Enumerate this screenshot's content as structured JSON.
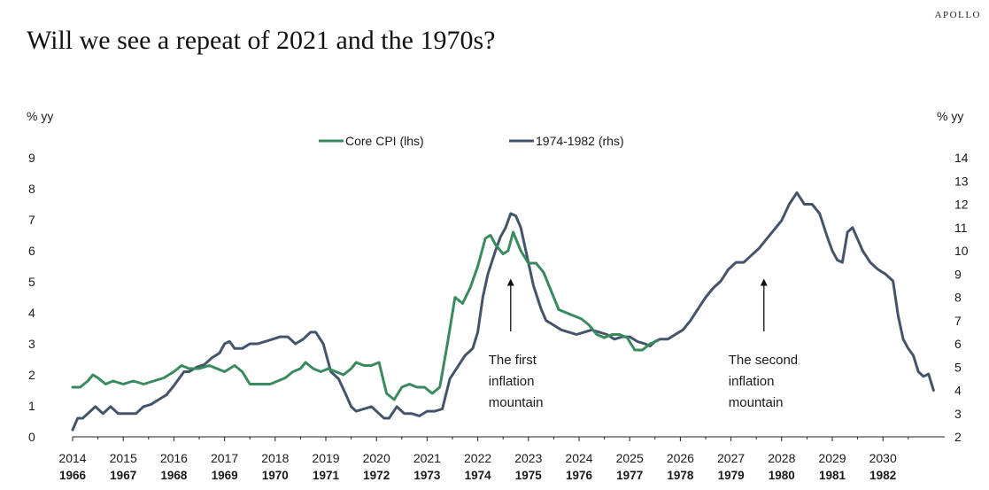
{
  "brand": "APOLLO",
  "title": "Will we see a repeat of 2021 and the 1970s?",
  "chart_data": {
    "type": "line",
    "title": "Will we see a repeat of 2021 and the 1970s?",
    "ylabel_left": "% yy",
    "ylabel_right": "% yy",
    "ylim_left": [
      0,
      9
    ],
    "ylim_right": [
      2,
      14
    ],
    "yticks_left": [
      "0",
      "1",
      "2",
      "3",
      "4",
      "5",
      "6",
      "7",
      "8",
      "9"
    ],
    "yticks_right": [
      "2",
      "3",
      "4",
      "5",
      "6",
      "7",
      "8",
      "9",
      "10",
      "11",
      "12",
      "13",
      "14"
    ],
    "xlim": [
      2014,
      2031
    ],
    "xticks_top": [
      "2014",
      "2015",
      "2016",
      "2017",
      "2018",
      "2019",
      "2020",
      "2021",
      "2022",
      "2023",
      "2024",
      "2025",
      "2026",
      "2027",
      "2028",
      "2029",
      "2030"
    ],
    "xticks_bottom": [
      "1966",
      "1967",
      "1968",
      "1969",
      "1970",
      "1971",
      "1972",
      "1973",
      "1974",
      "1975",
      "1976",
      "1977",
      "1978",
      "1979",
      "1980",
      "1981",
      "1982"
    ],
    "legend": [
      "Core CPI (lhs)",
      "1974-1982 (rhs)"
    ],
    "series": [
      {
        "name": "Core CPI (lhs)",
        "axis": "left",
        "color": "#3a8a5f",
        "points": [
          [
            2014.0,
            1.6
          ],
          [
            2014.15,
            1.6
          ],
          [
            2014.3,
            1.8
          ],
          [
            2014.4,
            2.0
          ],
          [
            2014.5,
            1.9
          ],
          [
            2014.65,
            1.7
          ],
          [
            2014.8,
            1.8
          ],
          [
            2015.0,
            1.7
          ],
          [
            2015.2,
            1.8
          ],
          [
            2015.4,
            1.7
          ],
          [
            2015.6,
            1.8
          ],
          [
            2015.8,
            1.9
          ],
          [
            2016.0,
            2.1
          ],
          [
            2016.15,
            2.3
          ],
          [
            2016.3,
            2.2
          ],
          [
            2016.5,
            2.2
          ],
          [
            2016.7,
            2.3
          ],
          [
            2016.85,
            2.2
          ],
          [
            2017.0,
            2.1
          ],
          [
            2017.2,
            2.3
          ],
          [
            2017.35,
            2.1
          ],
          [
            2017.5,
            1.7
          ],
          [
            2017.7,
            1.7
          ],
          [
            2017.9,
            1.7
          ],
          [
            2018.05,
            1.8
          ],
          [
            2018.2,
            1.9
          ],
          [
            2018.35,
            2.1
          ],
          [
            2018.5,
            2.2
          ],
          [
            2018.6,
            2.4
          ],
          [
            2018.75,
            2.2
          ],
          [
            2018.9,
            2.1
          ],
          [
            2019.05,
            2.2
          ],
          [
            2019.2,
            2.1
          ],
          [
            2019.35,
            2.0
          ],
          [
            2019.5,
            2.2
          ],
          [
            2019.6,
            2.4
          ],
          [
            2019.75,
            2.3
          ],
          [
            2019.9,
            2.3
          ],
          [
            2020.05,
            2.4
          ],
          [
            2020.2,
            1.4
          ],
          [
            2020.35,
            1.2
          ],
          [
            2020.5,
            1.6
          ],
          [
            2020.65,
            1.7
          ],
          [
            2020.8,
            1.6
          ],
          [
            2020.95,
            1.6
          ],
          [
            2021.1,
            1.4
          ],
          [
            2021.25,
            1.6
          ],
          [
            2021.4,
            3.0
          ],
          [
            2021.55,
            4.5
          ],
          [
            2021.7,
            4.3
          ],
          [
            2021.85,
            4.8
          ],
          [
            2022.0,
            5.5
          ],
          [
            2022.15,
            6.4
          ],
          [
            2022.25,
            6.5
          ],
          [
            2022.35,
            6.2
          ],
          [
            2022.5,
            5.9
          ],
          [
            2022.6,
            6.0
          ],
          [
            2022.7,
            6.6
          ],
          [
            2022.85,
            6.0
          ],
          [
            2023.0,
            5.6
          ],
          [
            2023.15,
            5.6
          ],
          [
            2023.3,
            5.3
          ],
          [
            2023.45,
            4.7
          ],
          [
            2023.6,
            4.1
          ],
          [
            2023.75,
            4.0
          ],
          [
            2023.9,
            3.9
          ],
          [
            2024.05,
            3.8
          ],
          [
            2024.2,
            3.6
          ],
          [
            2024.35,
            3.3
          ],
          [
            2024.5,
            3.2
          ],
          [
            2024.65,
            3.3
          ],
          [
            2024.8,
            3.3
          ],
          [
            2024.95,
            3.2
          ],
          [
            2025.1,
            2.8
          ],
          [
            2025.25,
            2.8
          ],
          [
            2025.4,
            3.0
          ],
          [
            2025.55,
            3.1
          ]
        ]
      },
      {
        "name": "1974-1982 (rhs)",
        "axis": "right",
        "color": "#44546a",
        "points": [
          [
            2014.0,
            2.3
          ],
          [
            2014.1,
            2.8
          ],
          [
            2014.2,
            2.8
          ],
          [
            2014.3,
            3.0
          ],
          [
            2014.45,
            3.3
          ],
          [
            2014.6,
            3.0
          ],
          [
            2014.75,
            3.3
          ],
          [
            2014.9,
            3.0
          ],
          [
            2015.1,
            3.0
          ],
          [
            2015.25,
            3.0
          ],
          [
            2015.4,
            3.3
          ],
          [
            2015.55,
            3.4
          ],
          [
            2015.7,
            3.6
          ],
          [
            2015.85,
            3.8
          ],
          [
            2016.0,
            4.2
          ],
          [
            2016.1,
            4.5
          ],
          [
            2016.2,
            4.8
          ],
          [
            2016.3,
            4.8
          ],
          [
            2016.45,
            5.0
          ],
          [
            2016.6,
            5.1
          ],
          [
            2016.75,
            5.4
          ],
          [
            2016.9,
            5.6
          ],
          [
            2017.0,
            6.0
          ],
          [
            2017.1,
            6.1
          ],
          [
            2017.2,
            5.8
          ],
          [
            2017.35,
            5.8
          ],
          [
            2017.5,
            6.0
          ],
          [
            2017.65,
            6.0
          ],
          [
            2017.8,
            6.1
          ],
          [
            2017.95,
            6.2
          ],
          [
            2018.1,
            6.3
          ],
          [
            2018.25,
            6.3
          ],
          [
            2018.4,
            6.0
          ],
          [
            2018.55,
            6.2
          ],
          [
            2018.7,
            6.5
          ],
          [
            2018.8,
            6.5
          ],
          [
            2018.95,
            6.0
          ],
          [
            2019.1,
            4.8
          ],
          [
            2019.25,
            4.5
          ],
          [
            2019.4,
            3.8
          ],
          [
            2019.5,
            3.3
          ],
          [
            2019.6,
            3.1
          ],
          [
            2019.75,
            3.2
          ],
          [
            2019.9,
            3.3
          ],
          [
            2020.05,
            3.0
          ],
          [
            2020.15,
            2.8
          ],
          [
            2020.25,
            2.8
          ],
          [
            2020.4,
            3.3
          ],
          [
            2020.55,
            3.0
          ],
          [
            2020.7,
            3.0
          ],
          [
            2020.85,
            2.9
          ],
          [
            2021.0,
            3.1
          ],
          [
            2021.15,
            3.1
          ],
          [
            2021.3,
            3.2
          ],
          [
            2021.45,
            4.5
          ],
          [
            2021.6,
            5.0
          ],
          [
            2021.75,
            5.5
          ],
          [
            2021.9,
            5.8
          ],
          [
            2022.0,
            6.5
          ],
          [
            2022.1,
            8.0
          ],
          [
            2022.2,
            9.0
          ],
          [
            2022.35,
            10.0
          ],
          [
            2022.45,
            10.6
          ],
          [
            2022.55,
            11.0
          ],
          [
            2022.65,
            11.6
          ],
          [
            2022.75,
            11.5
          ],
          [
            2022.85,
            11.0
          ],
          [
            2022.95,
            10.0
          ],
          [
            2023.1,
            8.5
          ],
          [
            2023.25,
            7.5
          ],
          [
            2023.35,
            7.0
          ],
          [
            2023.5,
            6.8
          ],
          [
            2023.65,
            6.6
          ],
          [
            2023.8,
            6.5
          ],
          [
            2023.95,
            6.4
          ],
          [
            2024.1,
            6.5
          ],
          [
            2024.25,
            6.6
          ],
          [
            2024.4,
            6.5
          ],
          [
            2024.55,
            6.4
          ],
          [
            2024.7,
            6.2
          ],
          [
            2024.85,
            6.3
          ],
          [
            2025.0,
            6.3
          ],
          [
            2025.15,
            6.1
          ],
          [
            2025.3,
            6.0
          ],
          [
            2025.4,
            5.9
          ],
          [
            2025.5,
            6.1
          ],
          [
            2025.6,
            6.2
          ],
          [
            2025.75,
            6.2
          ],
          [
            2025.9,
            6.4
          ],
          [
            2026.05,
            6.6
          ],
          [
            2026.2,
            7.0
          ],
          [
            2026.35,
            7.5
          ],
          [
            2026.5,
            8.0
          ],
          [
            2026.65,
            8.4
          ],
          [
            2026.8,
            8.7
          ],
          [
            2026.95,
            9.2
          ],
          [
            2027.1,
            9.5
          ],
          [
            2027.25,
            9.5
          ],
          [
            2027.4,
            9.8
          ],
          [
            2027.55,
            10.1
          ],
          [
            2027.7,
            10.5
          ],
          [
            2027.85,
            10.9
          ],
          [
            2028.0,
            11.3
          ],
          [
            2028.15,
            12.0
          ],
          [
            2028.3,
            12.5
          ],
          [
            2028.45,
            12.0
          ],
          [
            2028.6,
            12.0
          ],
          [
            2028.75,
            11.6
          ],
          [
            2028.9,
            10.6
          ],
          [
            2029.0,
            10.0
          ],
          [
            2029.1,
            9.6
          ],
          [
            2029.2,
            9.5
          ],
          [
            2029.3,
            10.8
          ],
          [
            2029.4,
            11.0
          ],
          [
            2029.5,
            10.5
          ],
          [
            2029.6,
            10.0
          ],
          [
            2029.75,
            9.5
          ],
          [
            2029.9,
            9.2
          ],
          [
            2030.05,
            9.0
          ],
          [
            2030.2,
            8.7
          ],
          [
            2030.3,
            7.2
          ],
          [
            2030.4,
            6.2
          ],
          [
            2030.5,
            5.8
          ],
          [
            2030.6,
            5.5
          ],
          [
            2030.7,
            4.8
          ],
          [
            2030.8,
            4.6
          ],
          [
            2030.9,
            4.7
          ],
          [
            2031.0,
            4.0
          ]
        ]
      }
    ],
    "annotations": [
      {
        "text_lines": [
          "The first",
          "inflation",
          "mountain"
        ],
        "arrow_x": 2022.65,
        "arrow_top_left": 5.1,
        "arrow_bottom_left": 3.4
      },
      {
        "text_lines": [
          "The second",
          "inflation",
          "mountain"
        ],
        "arrow_x": 2027.65,
        "arrow_top_left": 5.1,
        "arrow_bottom_left": 3.4
      }
    ]
  }
}
